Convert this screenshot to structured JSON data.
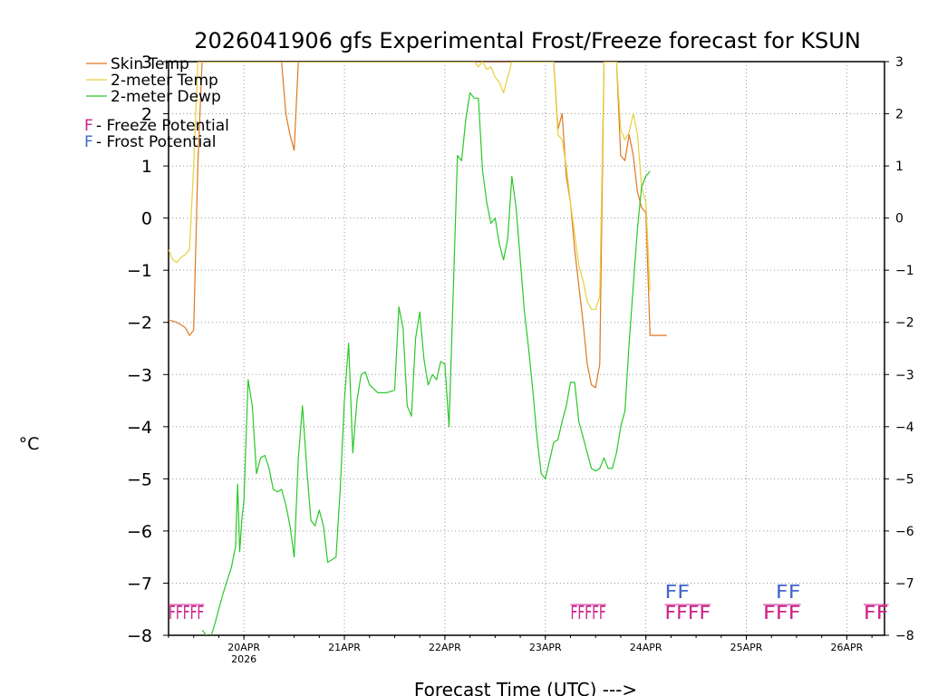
{
  "chart_data": {
    "type": "line",
    "title": "2026041906 gfs Experimental Frost/Freeze forecast for KSUN",
    "xlabel": "Forecast Time (UTC) --->",
    "ylabel": "°C",
    "ylim": [
      -8,
      3
    ],
    "xlim": [
      0,
      171
    ],
    "yticks": [
      -8,
      -7,
      -6,
      -5,
      -4,
      -3,
      -2,
      -1,
      0,
      1,
      2,
      3
    ],
    "y_tick_labels": [
      "−8",
      "−7",
      "−6",
      "−5",
      "−4",
      "−3",
      "−2",
      "−1",
      "0",
      "1",
      "2",
      "3"
    ],
    "right_tick_labels": [
      "−8",
      "−7",
      "−6",
      "−5",
      "−4",
      "−3",
      "−2",
      "−1",
      "0",
      "1",
      "2",
      "3"
    ],
    "x_ticks": [
      {
        "x": 18,
        "label": "20APR",
        "sub": "2026"
      },
      {
        "x": 42,
        "label": "21APR",
        "sub": ""
      },
      {
        "x": 66,
        "label": "22APR",
        "sub": ""
      },
      {
        "x": 90,
        "label": "23APR",
        "sub": ""
      },
      {
        "x": 114,
        "label": "24APR",
        "sub": ""
      },
      {
        "x": 138,
        "label": "25APR",
        "sub": ""
      },
      {
        "x": 162,
        "label": "26APR",
        "sub": ""
      }
    ],
    "grid": true,
    "legend": [
      {
        "label": "Skin Temp",
        "color": "#e07820"
      },
      {
        "label": "2-meter Temp",
        "color": "#e6d03c"
      },
      {
        "label": "2-meter Dewp",
        "color": "#28c828"
      }
    ],
    "potential_legend": [
      {
        "letter": "F",
        "text": " - Freeze Potential",
        "color": "#cc2288"
      },
      {
        "letter": "F",
        "text": " - Frost Potential",
        "color": "#4466cc"
      }
    ],
    "series": [
      {
        "name": "Skin Temp",
        "color": "#e07820",
        "x": [
          0,
          2,
          4,
          5,
          6,
          7,
          8,
          9,
          27,
          28,
          29,
          30,
          31,
          92,
          93,
          94,
          95,
          96,
          97,
          98,
          99,
          100,
          101,
          102,
          103,
          104,
          105,
          106,
          107,
          108,
          109,
          110,
          111,
          112,
          113,
          114,
          115,
          116,
          117,
          118,
          119
        ],
        "y": [
          -1.95,
          -2.0,
          -2.1,
          -2.25,
          -2.15,
          1.0,
          3.0,
          3.0,
          3.0,
          2.0,
          1.6,
          1.3,
          3.0,
          3.0,
          1.7,
          2.0,
          0.8,
          0.3,
          -0.6,
          -1.3,
          -2.0,
          -2.8,
          -3.2,
          -3.25,
          -2.8,
          3.0,
          3.0,
          3.0,
          3.0,
          1.2,
          1.1,
          1.6,
          1.2,
          0.5,
          0.2,
          0.1,
          -2.25,
          -2.25,
          -2.25,
          -2.25,
          -2.25
        ]
      },
      {
        "name": "2-meter Temp",
        "color": "#e6d03c",
        "x": [
          0,
          1,
          2,
          3,
          4,
          5,
          6,
          7,
          8,
          9,
          73,
          74,
          75,
          76,
          77,
          78,
          79,
          80,
          81,
          82,
          92,
          93,
          94,
          95,
          96,
          97,
          98,
          99,
          100,
          101,
          102,
          103,
          104,
          105,
          106,
          107,
          108,
          109,
          110,
          111,
          112,
          113,
          114,
          115
        ],
        "y": [
          -0.6,
          -0.8,
          -0.85,
          -0.75,
          -0.7,
          -0.6,
          1.0,
          3.0,
          3.0,
          3.0,
          3.0,
          2.9,
          3.0,
          2.85,
          2.9,
          2.7,
          2.6,
          2.4,
          2.7,
          3.0,
          3.0,
          1.6,
          1.5,
          1.0,
          0.3,
          -0.3,
          -0.9,
          -1.2,
          -1.6,
          -1.75,
          -1.75,
          -1.5,
          3.0,
          3.0,
          3.0,
          3.0,
          1.7,
          1.5,
          1.65,
          2.0,
          1.6,
          0.6,
          0.3,
          -1.4
        ]
      },
      {
        "name": "2-meter Dewp",
        "color": "#28c828",
        "x": [
          8,
          9,
          10,
          11,
          13,
          15,
          16,
          16.5,
          17,
          17.5,
          18,
          19,
          20,
          21,
          22,
          23,
          24,
          25,
          26,
          27,
          28,
          29,
          30,
          31,
          32,
          33,
          34,
          35,
          36,
          37,
          38,
          39,
          40,
          41,
          42,
          43,
          44,
          45,
          46,
          47,
          48,
          50,
          52,
          54,
          55,
          56,
          57,
          58,
          59,
          60,
          61,
          62,
          63,
          64,
          65,
          66,
          67,
          69,
          70,
          71,
          72,
          73,
          74,
          75,
          76,
          77,
          78,
          79,
          80,
          81,
          82,
          83,
          85,
          86,
          87,
          88,
          89,
          90,
          92,
          93,
          94,
          95,
          96,
          97,
          98,
          99,
          100,
          101,
          102,
          103,
          104,
          105,
          106,
          107,
          108,
          109,
          110,
          111,
          112,
          113,
          114,
          115
        ],
        "y": [
          -7.9,
          -8.0,
          -8.05,
          -7.8,
          -7.2,
          -6.7,
          -6.3,
          -5.1,
          -6.4,
          -5.8,
          -5.4,
          -3.1,
          -3.6,
          -4.9,
          -4.6,
          -4.55,
          -4.8,
          -5.2,
          -5.25,
          -5.2,
          -5.5,
          -5.9,
          -6.5,
          -4.6,
          -3.6,
          -4.8,
          -5.8,
          -5.9,
          -5.6,
          -5.9,
          -6.6,
          -6.55,
          -6.5,
          -5.2,
          -3.5,
          -2.4,
          -4.5,
          -3.5,
          -3.0,
          -2.95,
          -3.2,
          -3.35,
          -3.35,
          -3.3,
          -1.7,
          -2.1,
          -3.6,
          -3.8,
          -2.3,
          -1.8,
          -2.7,
          -3.2,
          -3.0,
          -3.1,
          -2.75,
          -2.8,
          -4.0,
          1.2,
          1.1,
          1.9,
          2.4,
          2.3,
          2.3,
          0.9,
          0.3,
          -0.1,
          0.0,
          -0.5,
          -0.8,
          -0.4,
          0.8,
          0.2,
          -1.8,
          -2.5,
          -3.3,
          -4.2,
          -4.9,
          -5.0,
          -4.3,
          -4.25,
          -3.9,
          -3.6,
          -3.15,
          -3.15,
          -3.9,
          -4.2,
          -4.5,
          -4.8,
          -4.85,
          -4.8,
          -4.6,
          -4.8,
          -4.8,
          -4.5,
          -4.0,
          -3.7,
          -2.4,
          -1.3,
          -0.2,
          0.6,
          0.8,
          0.9
        ]
      }
    ],
    "potential_marks": [
      {
        "x_start": 0,
        "x_end": 8.5,
        "text": "FFFFF",
        "kind": "freeze",
        "color": "#cc2288",
        "y": -7.55,
        "compressed": true
      },
      {
        "x_start": 96,
        "x_end": 104.5,
        "text": "FFFFF",
        "kind": "freeze",
        "color": "#cc2288",
        "y": -7.55,
        "compressed": true
      },
      {
        "x_start": 118.5,
        "x_end": 129.5,
        "text": "FFFF",
        "kind": "freeze",
        "color": "#cc2288",
        "y": -7.55,
        "compressed": false
      },
      {
        "x_start": 142,
        "x_end": 151,
        "text": "FFF",
        "kind": "freeze",
        "color": "#cc2288",
        "y": -7.55,
        "compressed": false
      },
      {
        "x_start": 166,
        "x_end": 172,
        "text": "FF",
        "kind": "freeze",
        "color": "#cc2288",
        "y": -7.55,
        "compressed": false
      },
      {
        "x_start": 118.5,
        "x_end": 124.5,
        "text": "FF",
        "kind": "frost",
        "color": "#4466cc",
        "y": -7.15,
        "compressed": false
      },
      {
        "x_start": 145,
        "x_end": 151,
        "text": "FF",
        "kind": "frost",
        "color": "#4466cc",
        "y": -7.15,
        "compressed": false
      }
    ]
  }
}
